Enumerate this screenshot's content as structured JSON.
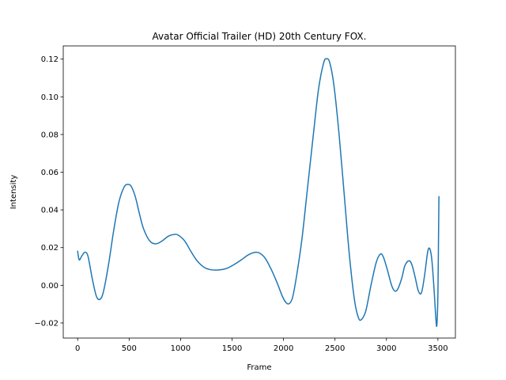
{
  "chart_data": {
    "type": "line",
    "title": "Avatar  Official Trailer (HD)  20th Century FOX.",
    "xlabel": "Frame",
    "ylabel": "Intensity",
    "xlim": [
      -140,
      3670
    ],
    "ylim": [
      -0.028,
      0.127
    ],
    "xticks": [
      0,
      500,
      1000,
      1500,
      2000,
      2500,
      3000,
      3500
    ],
    "xtick_labels": [
      "0",
      "500",
      "1000",
      "1500",
      "2000",
      "2500",
      "3000",
      "3500"
    ],
    "yticks": [
      -0.02,
      0.0,
      0.02,
      0.04,
      0.06,
      0.08,
      0.1,
      0.12
    ],
    "ytick_labels": [
      "−0.02",
      "0.00",
      "0.02",
      "0.04",
      "0.06",
      "0.08",
      "0.10",
      "0.12"
    ],
    "grid": false,
    "legend": "none",
    "series": [
      {
        "color": "#1f77b4",
        "points": [
          [
            0,
            0.018
          ],
          [
            15,
            0.0135
          ],
          [
            40,
            0.0155
          ],
          [
            70,
            0.0175
          ],
          [
            100,
            0.0155
          ],
          [
            140,
            0.004
          ],
          [
            180,
            -0.0055
          ],
          [
            215,
            -0.0075
          ],
          [
            250,
            -0.0035
          ],
          [
            300,
            0.011
          ],
          [
            350,
            0.029
          ],
          [
            400,
            0.044
          ],
          [
            450,
            0.052
          ],
          [
            485,
            0.0535
          ],
          [
            520,
            0.0525
          ],
          [
            560,
            0.047
          ],
          [
            600,
            0.038
          ],
          [
            640,
            0.03
          ],
          [
            700,
            0.0235
          ],
          [
            760,
            0.022
          ],
          [
            820,
            0.0235
          ],
          [
            880,
            0.026
          ],
          [
            940,
            0.027
          ],
          [
            980,
            0.0265
          ],
          [
            1040,
            0.0235
          ],
          [
            1100,
            0.018
          ],
          [
            1160,
            0.013
          ],
          [
            1230,
            0.0095
          ],
          [
            1300,
            0.0082
          ],
          [
            1380,
            0.0082
          ],
          [
            1450,
            0.009
          ],
          [
            1520,
            0.011
          ],
          [
            1590,
            0.0135
          ],
          [
            1660,
            0.0162
          ],
          [
            1730,
            0.0175
          ],
          [
            1770,
            0.017
          ],
          [
            1820,
            0.0145
          ],
          [
            1880,
            0.0085
          ],
          [
            1940,
            0.001
          ],
          [
            1990,
            -0.006
          ],
          [
            2030,
            -0.0095
          ],
          [
            2060,
            -0.0095
          ],
          [
            2090,
            -0.006
          ],
          [
            2130,
            0.006
          ],
          [
            2180,
            0.025
          ],
          [
            2230,
            0.05
          ],
          [
            2290,
            0.08
          ],
          [
            2340,
            0.104
          ],
          [
            2390,
            0.118
          ],
          [
            2420,
            0.1202
          ],
          [
            2450,
            0.118
          ],
          [
            2490,
            0.106
          ],
          [
            2540,
            0.08
          ],
          [
            2590,
            0.048
          ],
          [
            2640,
            0.016
          ],
          [
            2690,
            -0.008
          ],
          [
            2730,
            -0.0175
          ],
          [
            2760,
            -0.018
          ],
          [
            2800,
            -0.0135
          ],
          [
            2850,
            0.0
          ],
          [
            2900,
            0.012
          ],
          [
            2940,
            0.0165
          ],
          [
            2970,
            0.015
          ],
          [
            3010,
            0.008
          ],
          [
            3050,
            0.0
          ],
          [
            3080,
            -0.003
          ],
          [
            3110,
            -0.002
          ],
          [
            3150,
            0.004
          ],
          [
            3180,
            0.0105
          ],
          [
            3220,
            0.013
          ],
          [
            3250,
            0.0105
          ],
          [
            3280,
            0.004
          ],
          [
            3310,
            -0.003
          ],
          [
            3340,
            -0.004
          ],
          [
            3370,
            0.005
          ],
          [
            3400,
            0.0175
          ],
          [
            3420,
            0.0195
          ],
          [
            3440,
            0.014
          ],
          [
            3460,
            0.0
          ],
          [
            3480,
            -0.0175
          ],
          [
            3490,
            -0.021
          ],
          [
            3500,
            -0.005
          ],
          [
            3505,
            0.02
          ],
          [
            3510,
            0.047
          ]
        ]
      }
    ]
  }
}
